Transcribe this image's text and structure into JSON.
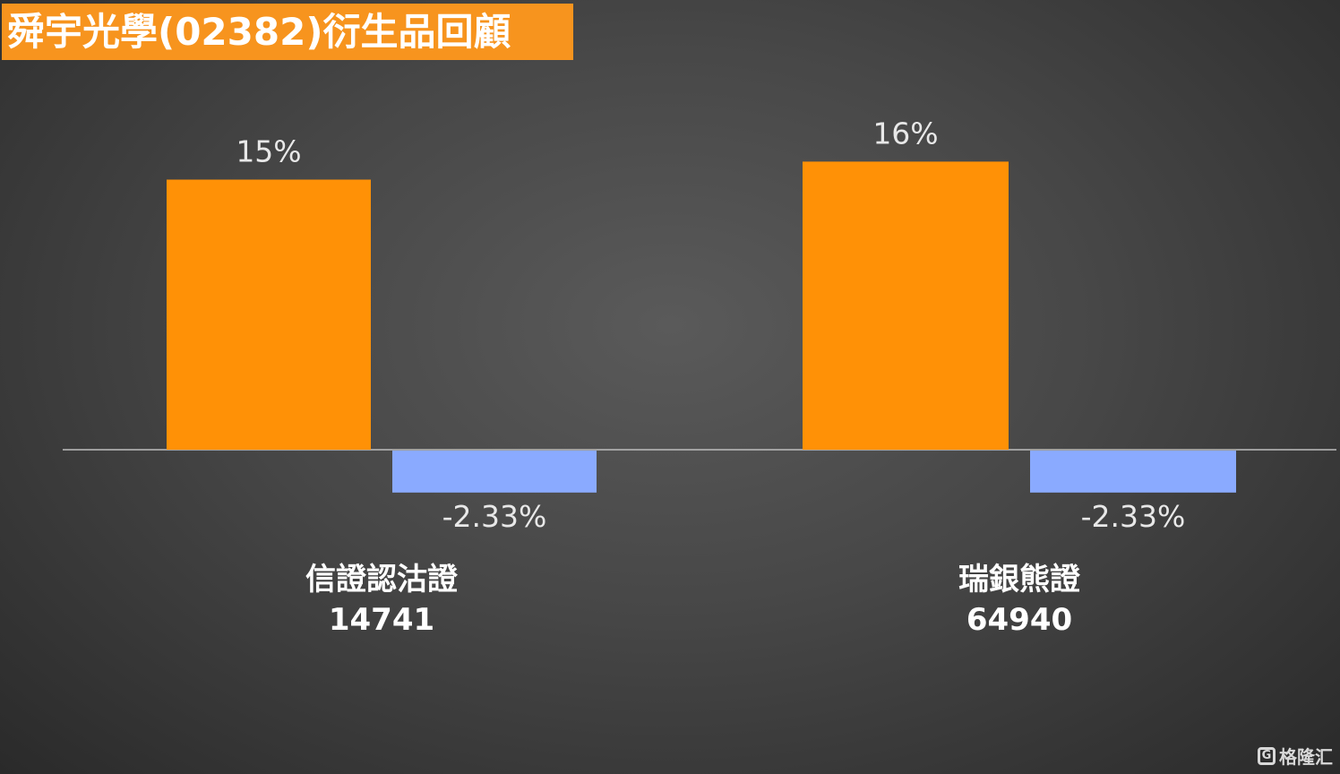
{
  "title": "舜宇光學(02382)衍生品回顧",
  "chart_data": {
    "type": "bar",
    "categories": [
      {
        "name": "信證認沽證",
        "code": "14741"
      },
      {
        "name": "瑞銀熊證",
        "code": "64940"
      }
    ],
    "series": [
      {
        "values": [
          15,
          16
        ],
        "labels": [
          "15%",
          "16%"
        ],
        "color": "#ff9106"
      },
      {
        "values": [
          -2.33,
          -2.33
        ],
        "labels": [
          "-2.33%",
          "-2.33%"
        ],
        "color": "#8aaaff"
      }
    ],
    "unit": "%",
    "ylim": [
      -3,
      18
    ],
    "grid": false,
    "legend": "none"
  },
  "watermark": {
    "logo": "G",
    "text": "格隆汇"
  }
}
